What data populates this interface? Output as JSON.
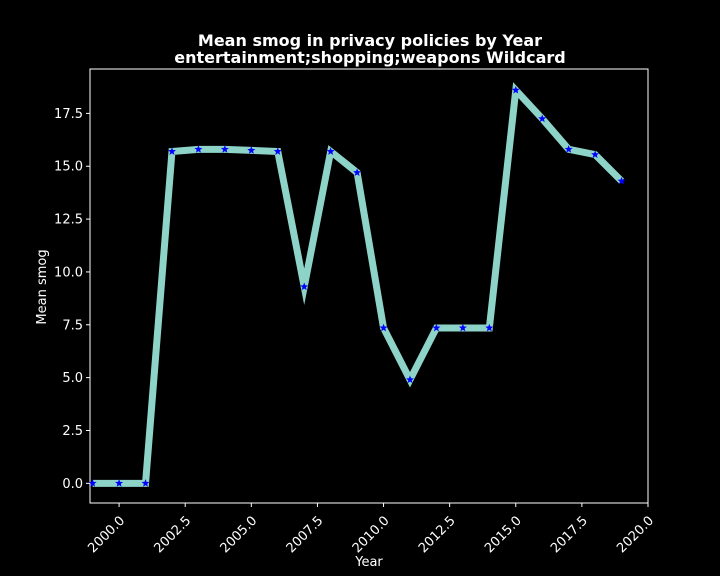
{
  "chart_data": {
    "type": "line",
    "title": "Mean smog in privacy policies by Year",
    "subtitle": "entertainment;shopping;weapons Wildcard",
    "xlabel": "Year",
    "ylabel": "Mean smog",
    "xlim": [
      1998.9,
      2020.0
    ],
    "ylim": [
      -0.93,
      19.6
    ],
    "x_ticks": [
      2000.0,
      2002.5,
      2005.0,
      2007.5,
      2010.0,
      2012.5,
      2015.0,
      2017.5,
      2020.0
    ],
    "x_tick_labels": [
      "2000.0",
      "2002.5",
      "2005.0",
      "2007.5",
      "2010.0",
      "2012.5",
      "2015.0",
      "2017.5",
      "2020.0"
    ],
    "y_ticks": [
      0.0,
      2.5,
      5.0,
      7.5,
      10.0,
      12.5,
      15.0,
      17.5
    ],
    "y_tick_labels": [
      "0.0",
      "2.5",
      "5.0",
      "7.5",
      "10.0",
      "12.5",
      "15.0",
      "17.5"
    ],
    "grid": false,
    "series": [
      {
        "x": [
          1999,
          2000,
          2001,
          2002,
          2003,
          2004,
          2005,
          2006,
          2007,
          2008,
          2009,
          2010,
          2011,
          2012,
          2013,
          2014,
          2015,
          2016,
          2017,
          2018,
          2019
        ],
        "values": [
          0.0,
          0.0,
          0.0,
          15.7,
          15.8,
          15.8,
          15.75,
          15.7,
          9.3,
          15.7,
          14.7,
          7.35,
          4.9,
          7.35,
          7.35,
          7.35,
          18.6,
          17.25,
          15.8,
          15.55,
          14.3
        ],
        "line_color": "#8dd3c7",
        "marker_color": "#0000ff",
        "marker": "star"
      }
    ],
    "background_color": "#000000",
    "text_color": "#ffffff"
  }
}
